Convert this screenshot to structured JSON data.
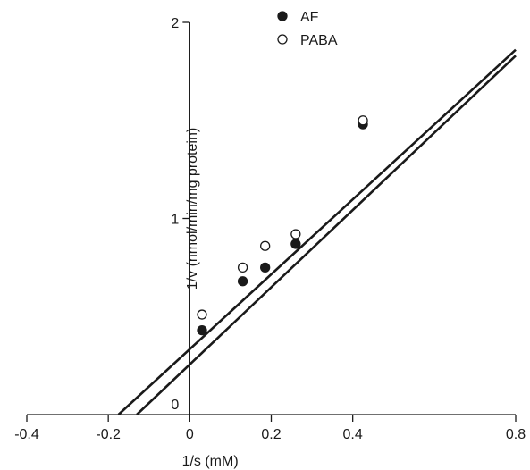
{
  "chart_data": {
    "type": "scatter",
    "title": "",
    "xlabel": "1/s (mM)",
    "ylabel": "1/v (nmol/min/mg protein)",
    "xlim": [
      -0.4,
      0.8
    ],
    "ylim": [
      0,
      2
    ],
    "x_ticks": [
      "-0.4",
      "-0.2",
      "0",
      "0.2",
      "0.4",
      "0.8"
    ],
    "x_tick_values": [
      -0.4,
      -0.2,
      0,
      0.2,
      0.4,
      0.8
    ],
    "y_ticks": [
      "0",
      "1",
      "2"
    ],
    "y_tick_values": [
      0,
      1,
      2
    ],
    "grid": false,
    "legend_position": "top-center",
    "series": [
      {
        "name": "AF",
        "marker": "filled-circle",
        "color": "#1a1a1a",
        "points": [
          {
            "x": 0.03,
            "y": 0.43
          },
          {
            "x": 0.13,
            "y": 0.68
          },
          {
            "x": 0.185,
            "y": 0.75
          },
          {
            "x": 0.26,
            "y": 0.87
          },
          {
            "x": 0.425,
            "y": 1.48
          }
        ],
        "fit_line": {
          "x": [
            -0.13,
            0.8
          ],
          "y": [
            0,
            1.83
          ]
        }
      },
      {
        "name": "PABA",
        "marker": "open-circle",
        "color": "#1a1a1a",
        "points": [
          {
            "x": 0.03,
            "y": 0.51
          },
          {
            "x": 0.13,
            "y": 0.75
          },
          {
            "x": 0.185,
            "y": 0.86
          },
          {
            "x": 0.26,
            "y": 0.92
          },
          {
            "x": 0.425,
            "y": 1.5
          }
        ],
        "fit_line": {
          "x": [
            -0.175,
            0.8
          ],
          "y": [
            0,
            1.86
          ]
        }
      }
    ]
  }
}
